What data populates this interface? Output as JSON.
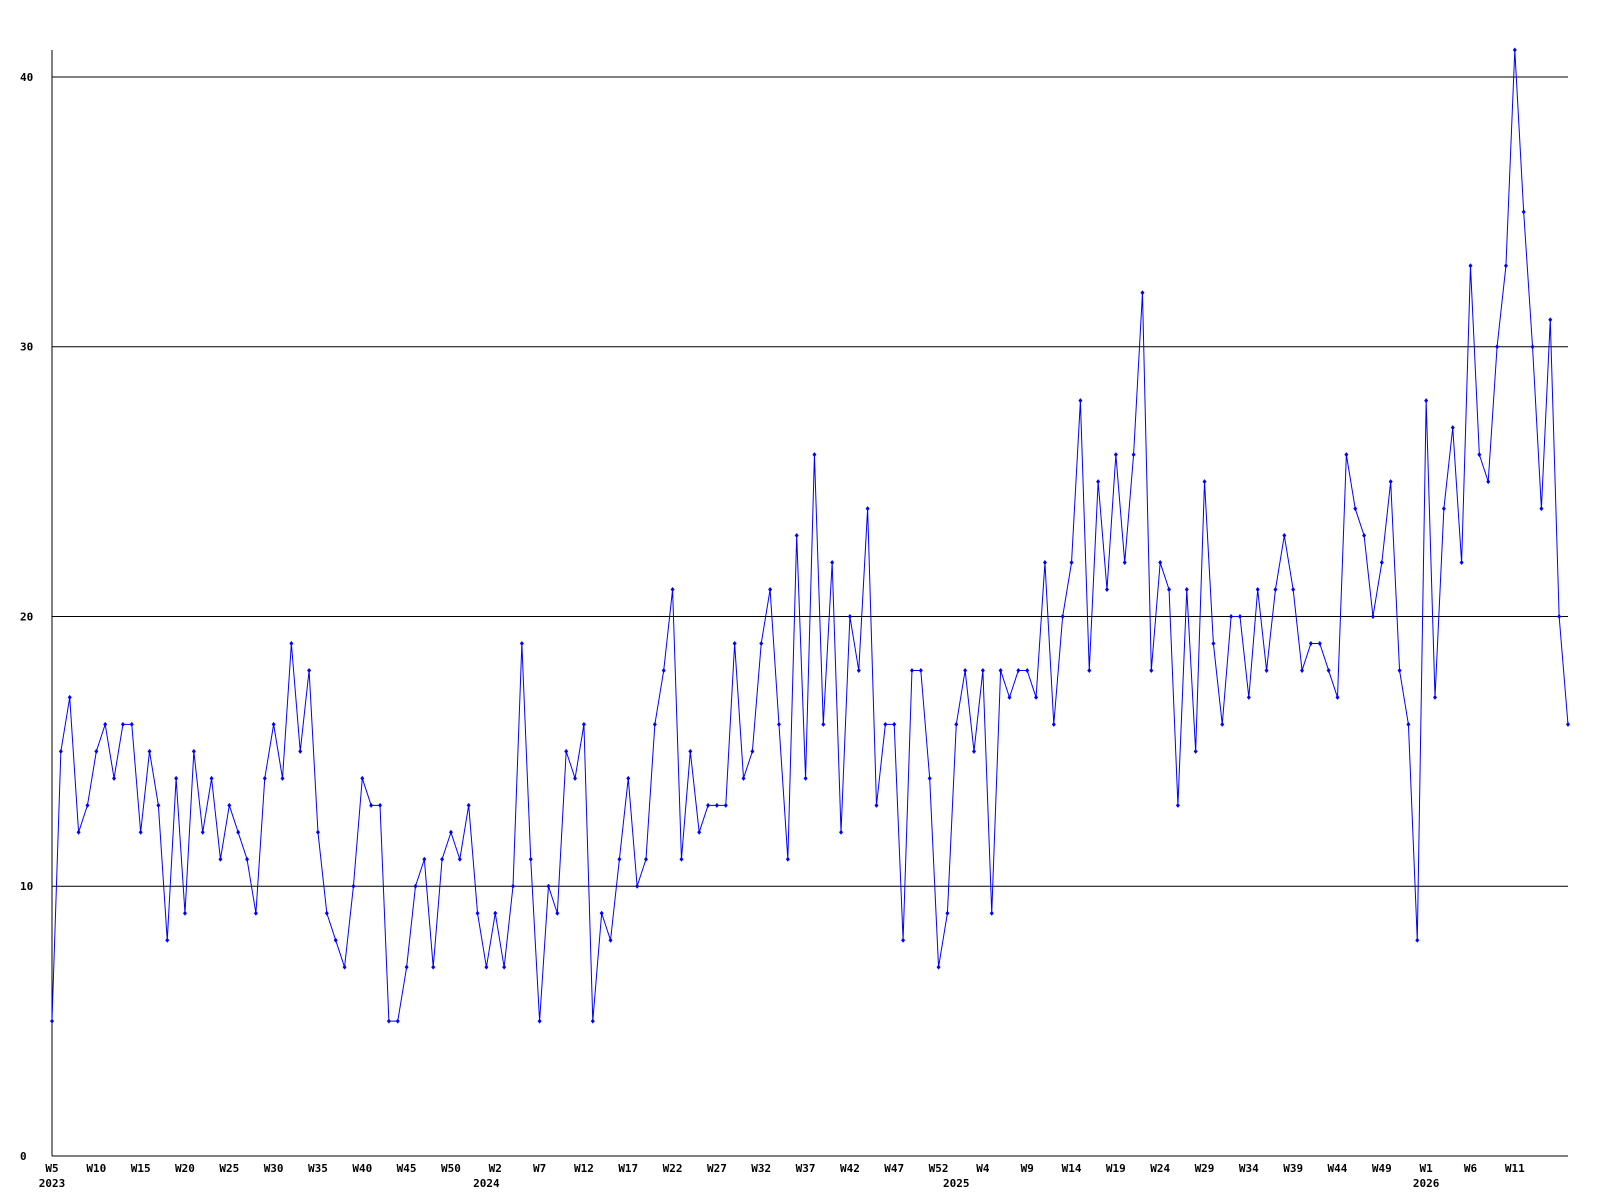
{
  "chart_data": {
    "type": "line",
    "color": "#0000ff",
    "grid": true,
    "ylim": [
      0,
      41
    ],
    "yticks": [
      0,
      10,
      20,
      30,
      40
    ],
    "categories": [
      "W5",
      null,
      null,
      null,
      null,
      "W10",
      null,
      null,
      null,
      null,
      "W15",
      null,
      null,
      null,
      null,
      "W20",
      null,
      null,
      null,
      null,
      "W25",
      null,
      null,
      null,
      null,
      "W30",
      null,
      null,
      null,
      null,
      "W35",
      null,
      null,
      null,
      null,
      "W40",
      null,
      null,
      null,
      null,
      "W45",
      null,
      null,
      null,
      null,
      "W50",
      null,
      null,
      null,
      null,
      "W2",
      null,
      null,
      null,
      null,
      "W7",
      null,
      null,
      null,
      null,
      "W12",
      null,
      null,
      null,
      null,
      "W17",
      null,
      null,
      null,
      null,
      "W22",
      null,
      null,
      null,
      null,
      "W27",
      null,
      null,
      null,
      null,
      "W32",
      null,
      null,
      null,
      null,
      "W37",
      null,
      null,
      null,
      null,
      "W42",
      null,
      null,
      null,
      null,
      "W47",
      null,
      null,
      null,
      null,
      "W52",
      null,
      null,
      null,
      null,
      "W4",
      null,
      null,
      null,
      null,
      "W9",
      null,
      null,
      null,
      null,
      "W14",
      null,
      null,
      null,
      null,
      "W19",
      null,
      null,
      null,
      null,
      "W24",
      null,
      null,
      null,
      null,
      "W29",
      null,
      null,
      null,
      null,
      "W34",
      null,
      null,
      null,
      null,
      "W39",
      null,
      null,
      null,
      null,
      "W44",
      null,
      null,
      null,
      null,
      "W49",
      null,
      null,
      null,
      null,
      "W1",
      null,
      null,
      null,
      null,
      "W6",
      null,
      null,
      null,
      null,
      "W11",
      null,
      null,
      null,
      null,
      null,
      null
    ],
    "years": [
      "2023",
      null,
      null,
      null,
      null,
      null,
      null,
      null,
      null,
      null,
      null,
      null,
      null,
      null,
      null,
      null,
      null,
      null,
      null,
      null,
      null,
      null,
      null,
      null,
      null,
      null,
      null,
      null,
      null,
      null,
      null,
      null,
      null,
      null,
      null,
      null,
      null,
      null,
      null,
      null,
      null,
      null,
      null,
      null,
      null,
      null,
      null,
      null,
      null,
      "2024",
      null,
      null,
      null,
      null,
      null,
      null,
      null,
      null,
      null,
      null,
      null,
      null,
      null,
      null,
      null,
      null,
      null,
      null,
      null,
      null,
      null,
      null,
      null,
      null,
      null,
      null,
      null,
      null,
      null,
      null,
      null,
      null,
      null,
      null,
      null,
      null,
      null,
      null,
      null,
      null,
      null,
      null,
      null,
      null,
      null,
      null,
      null,
      null,
      null,
      null,
      null,
      null,
      "2025",
      null,
      null,
      null,
      null,
      null,
      null,
      null,
      null,
      null,
      null,
      null,
      null,
      null,
      null,
      null,
      null,
      null,
      null,
      null,
      null,
      null,
      null,
      null,
      null,
      null,
      null,
      null,
      null,
      null,
      null,
      null,
      null,
      null,
      null,
      null,
      null,
      null,
      null,
      null,
      null,
      null,
      null,
      null,
      null,
      null,
      null,
      null,
      null,
      null,
      null,
      null,
      null,
      "2026",
      null,
      null,
      null,
      null,
      null,
      null,
      null,
      null,
      null,
      null,
      null,
      null,
      null,
      null,
      null,
      null
    ],
    "values": [
      5,
      15,
      17,
      12,
      13,
      15,
      16,
      14,
      16,
      16,
      12,
      15,
      13,
      8,
      14,
      9,
      15,
      12,
      14,
      11,
      13,
      12,
      11,
      9,
      14,
      16,
      14,
      19,
      15,
      18,
      12,
      9,
      8,
      7,
      10,
      14,
      13,
      13,
      5,
      5,
      7,
      10,
      11,
      7,
      11,
      12,
      11,
      13,
      9,
      7,
      9,
      7,
      10,
      19,
      11,
      5,
      10,
      9,
      15,
      14,
      16,
      5,
      9,
      8,
      11,
      14,
      10,
      11,
      16,
      18,
      21,
      11,
      15,
      12,
      13,
      13,
      13,
      19,
      14,
      15,
      19,
      21,
      16,
      11,
      23,
      14,
      26,
      16,
      22,
      12,
      20,
      18,
      24,
      13,
      16,
      16,
      8,
      18,
      18,
      14,
      7,
      9,
      16,
      18,
      15,
      18,
      9,
      18,
      17,
      18,
      18,
      17,
      22,
      16,
      20,
      22,
      28,
      18,
      25,
      21,
      26,
      22,
      26,
      32,
      18,
      22,
      21,
      13,
      21,
      15,
      25,
      19,
      16,
      20,
      20,
      17,
      21,
      18,
      21,
      23,
      21,
      18,
      19,
      19,
      18,
      17,
      26,
      24,
      23,
      20,
      22,
      25,
      18,
      16,
      8,
      28,
      17,
      24,
      27,
      22,
      33,
      26,
      25,
      30,
      33,
      41,
      35,
      30,
      24,
      31,
      20,
      16
    ]
  }
}
